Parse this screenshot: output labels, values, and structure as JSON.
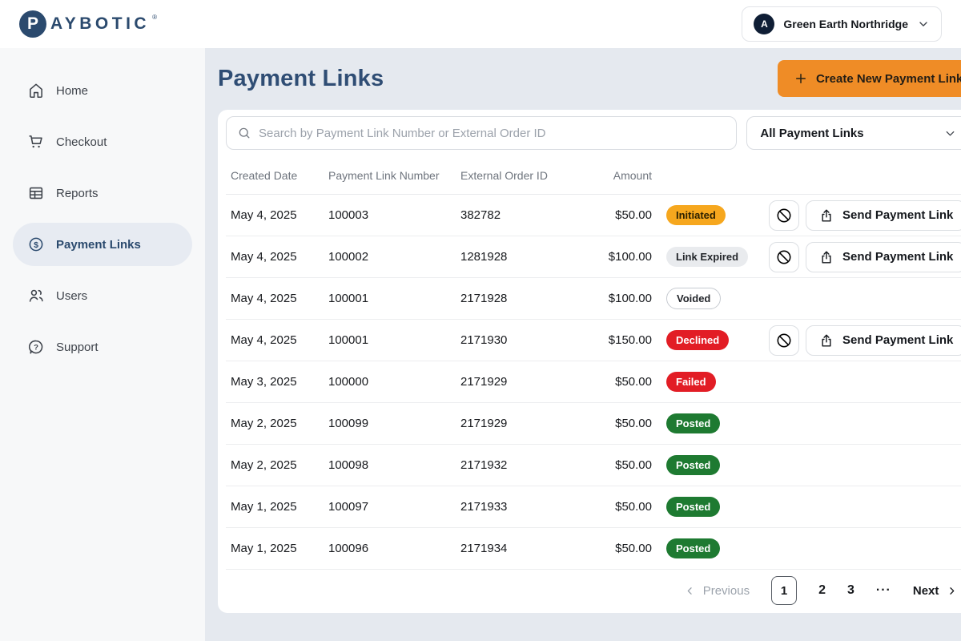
{
  "topbar": {
    "logo_circle_letter": "P",
    "logo_text": "AYBOTIC",
    "registered_mark": "®",
    "account": {
      "initial": "A",
      "name": "Green Earth Northridge"
    }
  },
  "sidebar": {
    "items": [
      {
        "label": "Home",
        "icon": "home-icon",
        "active": false
      },
      {
        "label": "Checkout",
        "icon": "cart-icon",
        "active": false
      },
      {
        "label": "Reports",
        "icon": "table-icon",
        "active": false
      },
      {
        "label": "Payment Links",
        "icon": "dollar-coin-icon",
        "active": true
      },
      {
        "label": "Users",
        "icon": "users-icon",
        "active": false
      },
      {
        "label": "Support",
        "icon": "help-bubble-icon",
        "active": false
      }
    ]
  },
  "main": {
    "title": "Payment Links",
    "create_button_label": "Create New Payment Link",
    "search": {
      "placeholder": "Search by Payment Link Number or External Order ID"
    },
    "filter": {
      "value": "All Payment Links"
    },
    "table": {
      "headers": [
        "Created Date",
        "Payment Link Number",
        "External Order ID",
        "Amount"
      ],
      "send_button_label": "Send Payment Link",
      "rows": [
        {
          "date": "May 4, 2025",
          "link_number": "100003",
          "order_id": "382782",
          "amount": "$50.00",
          "status": "Initiated",
          "actions": true
        },
        {
          "date": "May 4, 2025",
          "link_number": "100002",
          "order_id": "1281928",
          "amount": "$100.00",
          "status": "Link Expired",
          "actions": true
        },
        {
          "date": "May 4, 2025",
          "link_number": "100001",
          "order_id": "2171928",
          "amount": "$100.00",
          "status": "Voided",
          "actions": false
        },
        {
          "date": "May 4, 2025",
          "link_number": "100001",
          "order_id": "2171930",
          "amount": "$150.00",
          "status": "Declined",
          "actions": true
        },
        {
          "date": "May 3, 2025",
          "link_number": "100000",
          "order_id": "2171929",
          "amount": "$50.00",
          "status": "Failed",
          "actions": false
        },
        {
          "date": "May 2, 2025",
          "link_number": "100099",
          "order_id": "2171929",
          "amount": "$50.00",
          "status": "Posted",
          "actions": false
        },
        {
          "date": "May 2, 2025",
          "link_number": "100098",
          "order_id": "2171932",
          "amount": "$50.00",
          "status": "Posted",
          "actions": false
        },
        {
          "date": "May 1, 2025",
          "link_number": "100097",
          "order_id": "2171933",
          "amount": "$50.00",
          "status": "Posted",
          "actions": false
        },
        {
          "date": "May 1, 2025",
          "link_number": "100096",
          "order_id": "2171934",
          "amount": "$50.00",
          "status": "Posted",
          "actions": false
        }
      ]
    },
    "pagination": {
      "previous_label": "Previous",
      "pages": [
        "1",
        "2",
        "3"
      ],
      "current_page": "1",
      "ellipsis": "···",
      "next_label": "Next"
    }
  },
  "colors": {
    "accent_orange": "#EF8C26",
    "brand_navy": "#2B4A6E",
    "status_initiated": "#F6A71E",
    "status_link_expired": "#E9EBEE",
    "status_declined": "#E21D25",
    "status_failed": "#E21D25",
    "status_posted": "#1E7A31",
    "main_background": "#E5E9EF",
    "sidebar_background": "#F7F8F9"
  }
}
